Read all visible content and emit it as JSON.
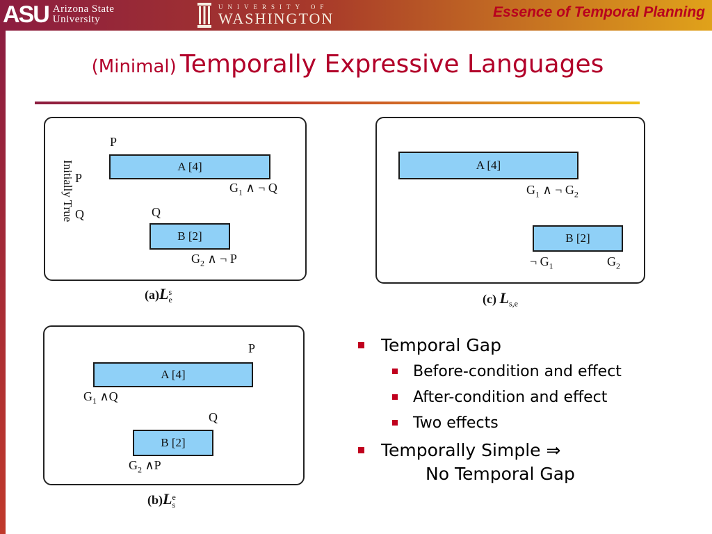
{
  "header": {
    "asu_mark": "ASU",
    "asu_name_line1": "Arizona State",
    "asu_name_line2": "University",
    "uw_top": "UNIVERSITY OF",
    "uw_bottom": "WASHINGTON",
    "deck_title": "Essence of Temporal Planning",
    "colors": {
      "maroon": "#8c1d40",
      "gold": "#e0a21a",
      "title_red": "#b2002a",
      "bar_blue": "#8fd0f7"
    }
  },
  "title": {
    "prefix": "(Minimal)",
    "main": "Temporally Expressive Languages"
  },
  "panel_a": {
    "label_initially_true": "Initially True",
    "init_p": "P",
    "init_q": "Q",
    "p_above_a": "P",
    "action_a": "A [4]",
    "a_end_g": "G",
    "a_end_g_sub": "1",
    "a_end_rest": "∧ ¬ Q",
    "q_above_b": "Q",
    "action_b": "B [2]",
    "b_end_g": "G",
    "b_end_g_sub": "2",
    "b_end_rest": "∧ ¬ P",
    "caption_prefix": "(a)",
    "caption_L": "L",
    "caption_sup": "s",
    "caption_sub": "e"
  },
  "panel_b": {
    "p_above_a": "P",
    "action_a": "A [4]",
    "a_start_g": "G",
    "a_start_g_sub": "1",
    "a_start_rest": "∧Q",
    "q_above_b": "Q",
    "action_b": "B [2]",
    "b_start_g": "G",
    "b_start_g_sub": "2",
    "b_start_rest": "∧P",
    "caption_prefix": "(b)",
    "caption_L": "L",
    "caption_sup": "e",
    "caption_sub": "s"
  },
  "panel_c": {
    "action_a": "A [4]",
    "a_end_g1": "G",
    "a_end_g1_sub": "1",
    "a_end_mid": "∧ ¬ G",
    "a_end_g2_sub": "2",
    "action_b": "B [2]",
    "b_start": "¬ G",
    "b_start_sub": "1",
    "b_end": "G",
    "b_end_sub": "2",
    "caption_prefix": "(c)",
    "caption_L": "L",
    "caption_sub": "s,e"
  },
  "bullets": {
    "temporal_gap": "Temporal Gap",
    "sub1": "Before-condition and effect",
    "sub2": "After-condition and effect",
    "sub3": "Two effects",
    "simple_line1": "Temporally Simple  ⇒",
    "simple_line2": "No Temporal Gap"
  }
}
